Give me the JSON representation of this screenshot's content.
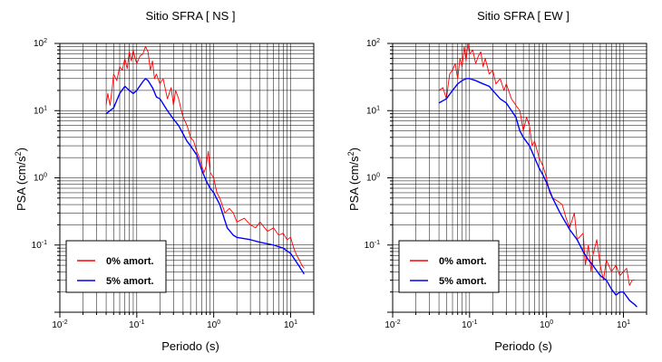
{
  "chart_data": [
    {
      "type": "line",
      "title": "Sitio SFRA [ NS ]",
      "xlabel": "Periodo (s)",
      "ylabel_main": "PSA (cm/s",
      "ylabel_sup": "2",
      "ylabel_close": ")",
      "x_scale": "log",
      "y_scale": "log",
      "xlim": [
        0.01,
        20
      ],
      "ylim": [
        0.01,
        100
      ],
      "x_tick_labels": [
        {
          "value": 0.01,
          "base": "10",
          "exp": "-2"
        },
        {
          "value": 0.1,
          "base": "10",
          "exp": "-1"
        },
        {
          "value": 1,
          "base": "10",
          "exp": "0"
        },
        {
          "value": 10,
          "base": "10",
          "exp": "1"
        }
      ],
      "y_tick_labels": [
        {
          "value": 0.1,
          "base": "10",
          "exp": "-1"
        },
        {
          "value": 1,
          "base": "10",
          "exp": "0"
        },
        {
          "value": 10,
          "base": "10",
          "exp": "1"
        },
        {
          "value": 100,
          "base": "10",
          "exp": "2"
        }
      ],
      "grid": true,
      "legend_position": "bottom-left",
      "series": [
        {
          "name": "0% amort.",
          "color": "#ff0000",
          "points": [
            [
              0.04,
              12
            ],
            [
              0.042,
              18
            ],
            [
              0.045,
              12
            ],
            [
              0.048,
              22
            ],
            [
              0.05,
              35
            ],
            [
              0.055,
              28
            ],
            [
              0.06,
              45
            ],
            [
              0.065,
              40
            ],
            [
              0.07,
              60
            ],
            [
              0.075,
              42
            ],
            [
              0.08,
              75
            ],
            [
              0.085,
              55
            ],
            [
              0.09,
              80
            ],
            [
              0.095,
              60
            ],
            [
              0.1,
              50
            ],
            [
              0.11,
              65
            ],
            [
              0.12,
              70
            ],
            [
              0.13,
              90
            ],
            [
              0.14,
              75
            ],
            [
              0.15,
              40
            ],
            [
              0.16,
              55
            ],
            [
              0.17,
              30
            ],
            [
              0.18,
              35
            ],
            [
              0.2,
              25
            ],
            [
              0.22,
              30
            ],
            [
              0.25,
              15
            ],
            [
              0.28,
              22
            ],
            [
              0.3,
              12
            ],
            [
              0.32,
              20
            ],
            [
              0.35,
              15
            ],
            [
              0.38,
              10
            ],
            [
              0.4,
              8
            ],
            [
              0.45,
              6
            ],
            [
              0.5,
              4
            ],
            [
              0.55,
              3.5
            ],
            [
              0.6,
              2.5
            ],
            [
              0.65,
              2
            ],
            [
              0.7,
              1.5
            ],
            [
              0.75,
              1.2
            ],
            [
              0.8,
              1.5
            ],
            [
              0.85,
              2.5
            ],
            [
              0.9,
              1.2
            ],
            [
              1.0,
              1.0
            ],
            [
              1.1,
              0.6
            ],
            [
              1.2,
              0.5
            ],
            [
              1.4,
              0.3
            ],
            [
              1.6,
              0.35
            ],
            [
              1.8,
              0.3
            ],
            [
              2.0,
              0.22
            ],
            [
              2.5,
              0.25
            ],
            [
              3.0,
              0.2
            ],
            [
              3.5,
              0.18
            ],
            [
              4.0,
              0.22
            ],
            [
              5.0,
              0.16
            ],
            [
              6.0,
              0.18
            ],
            [
              7.0,
              0.14
            ],
            [
              8.0,
              0.15
            ],
            [
              9.0,
              0.12
            ],
            [
              10.0,
              0.13
            ],
            [
              11.0,
              0.09
            ],
            [
              12.0,
              0.07
            ],
            [
              13.0,
              0.06
            ],
            [
              14.0,
              0.05
            ],
            [
              15.0,
              0.045
            ]
          ]
        },
        {
          "name": "5% amort.",
          "color": "#0000ff",
          "points": [
            [
              0.04,
              9
            ],
            [
              0.05,
              11
            ],
            [
              0.06,
              18
            ],
            [
              0.07,
              23
            ],
            [
              0.08,
              20
            ],
            [
              0.09,
              18
            ],
            [
              0.1,
              20
            ],
            [
              0.12,
              27
            ],
            [
              0.13,
              30
            ],
            [
              0.14,
              28
            ],
            [
              0.16,
              22
            ],
            [
              0.18,
              16
            ],
            [
              0.2,
              15
            ],
            [
              0.25,
              10
            ],
            [
              0.3,
              7.5
            ],
            [
              0.35,
              6
            ],
            [
              0.4,
              4.5
            ],
            [
              0.45,
              3.5
            ],
            [
              0.5,
              3
            ],
            [
              0.6,
              2.2
            ],
            [
              0.7,
              1.3
            ],
            [
              0.8,
              0.9
            ],
            [
              0.9,
              0.7
            ],
            [
              1.0,
              0.6
            ],
            [
              1.2,
              0.4
            ],
            [
              1.5,
              0.18
            ],
            [
              1.8,
              0.14
            ],
            [
              2.0,
              0.13
            ],
            [
              3.0,
              0.12
            ],
            [
              4.0,
              0.11
            ],
            [
              6.0,
              0.1
            ],
            [
              8.0,
              0.09
            ],
            [
              10.0,
              0.075
            ],
            [
              12.0,
              0.055
            ],
            [
              14.0,
              0.042
            ],
            [
              15.0,
              0.037
            ]
          ]
        }
      ]
    },
    {
      "type": "line",
      "title": "Sitio SFRA [ EW ]",
      "xlabel": "Periodo (s)",
      "ylabel_main": "PSA (cm/s",
      "ylabel_sup": "2",
      "ylabel_close": ")",
      "x_scale": "log",
      "y_scale": "log",
      "xlim": [
        0.01,
        20
      ],
      "ylim": [
        0.01,
        100
      ],
      "x_tick_labels": [
        {
          "value": 0.01,
          "base": "10",
          "exp": "-2"
        },
        {
          "value": 0.1,
          "base": "10",
          "exp": "-1"
        },
        {
          "value": 1,
          "base": "10",
          "exp": "0"
        },
        {
          "value": 10,
          "base": "10",
          "exp": "1"
        }
      ],
      "y_tick_labels": [
        {
          "value": 0.1,
          "base": "10",
          "exp": "-1"
        },
        {
          "value": 1,
          "base": "10",
          "exp": "0"
        },
        {
          "value": 10,
          "base": "10",
          "exp": "1"
        },
        {
          "value": 100,
          "base": "10",
          "exp": "2"
        }
      ],
      "grid": true,
      "legend_position": "bottom-left",
      "series": [
        {
          "name": "0% amort.",
          "color": "#ff0000",
          "points": [
            [
              0.04,
              20
            ],
            [
              0.045,
              22
            ],
            [
              0.05,
              15
            ],
            [
              0.055,
              35
            ],
            [
              0.06,
              40
            ],
            [
              0.065,
              50
            ],
            [
              0.07,
              30
            ],
            [
              0.075,
              60
            ],
            [
              0.08,
              45
            ],
            [
              0.085,
              90
            ],
            [
              0.09,
              55
            ],
            [
              0.095,
              100
            ],
            [
              0.1,
              70
            ],
            [
              0.11,
              80
            ],
            [
              0.12,
              50
            ],
            [
              0.13,
              65
            ],
            [
              0.14,
              75
            ],
            [
              0.15,
              45
            ],
            [
              0.16,
              60
            ],
            [
              0.18,
              35
            ],
            [
              0.2,
              40
            ],
            [
              0.22,
              25
            ],
            [
              0.25,
              30
            ],
            [
              0.28,
              20
            ],
            [
              0.3,
              25
            ],
            [
              0.35,
              15
            ],
            [
              0.4,
              12
            ],
            [
              0.45,
              10
            ],
            [
              0.5,
              5
            ],
            [
              0.55,
              8
            ],
            [
              0.6,
              6
            ],
            [
              0.65,
              3
            ],
            [
              0.7,
              3.5
            ],
            [
              0.8,
              2
            ],
            [
              0.9,
              1.5
            ],
            [
              1.0,
              1.0
            ],
            [
              1.1,
              0.6
            ],
            [
              1.2,
              0.5
            ],
            [
              1.4,
              0.45
            ],
            [
              1.6,
              0.4
            ],
            [
              1.8,
              0.25
            ],
            [
              2.0,
              0.18
            ],
            [
              2.3,
              0.3
            ],
            [
              2.5,
              0.12
            ],
            [
              3.0,
              0.15
            ],
            [
              3.2,
              0.05
            ],
            [
              3.5,
              0.1
            ],
            [
              3.8,
              0.04
            ],
            [
              4.0,
              0.07
            ],
            [
              4.5,
              0.12
            ],
            [
              5.0,
              0.05
            ],
            [
              5.5,
              0.03
            ],
            [
              6.0,
              0.06
            ],
            [
              7.0,
              0.04
            ],
            [
              8.0,
              0.05
            ],
            [
              9.0,
              0.035
            ],
            [
              10.0,
              0.04
            ],
            [
              11.0,
              0.045
            ],
            [
              12.0,
              0.025
            ],
            [
              13.0,
              0.03
            ],
            [
              14.0,
              0.03
            ]
          ]
        },
        {
          "name": "5% amort.",
          "color": "#0000ff",
          "points": [
            [
              0.04,
              13
            ],
            [
              0.05,
              15
            ],
            [
              0.06,
              20
            ],
            [
              0.07,
              25
            ],
            [
              0.08,
              28
            ],
            [
              0.09,
              30
            ],
            [
              0.1,
              30
            ],
            [
              0.12,
              28
            ],
            [
              0.15,
              25
            ],
            [
              0.18,
              23
            ],
            [
              0.2,
              20
            ],
            [
              0.25,
              15
            ],
            [
              0.3,
              13
            ],
            [
              0.35,
              10
            ],
            [
              0.4,
              8
            ],
            [
              0.45,
              5
            ],
            [
              0.5,
              4
            ],
            [
              0.6,
              3
            ],
            [
              0.7,
              2
            ],
            [
              0.8,
              1.4
            ],
            [
              0.9,
              1.1
            ],
            [
              1.0,
              0.85
            ],
            [
              1.2,
              0.5
            ],
            [
              1.5,
              0.3
            ],
            [
              2.0,
              0.17
            ],
            [
              2.5,
              0.12
            ],
            [
              3.0,
              0.08
            ],
            [
              3.5,
              0.06
            ],
            [
              4.0,
              0.05
            ],
            [
              5.0,
              0.035
            ],
            [
              6.0,
              0.03
            ],
            [
              7.0,
              0.022
            ],
            [
              8.0,
              0.018
            ],
            [
              9.0,
              0.02
            ],
            [
              10.0,
              0.02
            ],
            [
              12.0,
              0.015
            ],
            [
              14.0,
              0.013
            ],
            [
              15.0,
              0.012
            ]
          ]
        }
      ]
    }
  ]
}
